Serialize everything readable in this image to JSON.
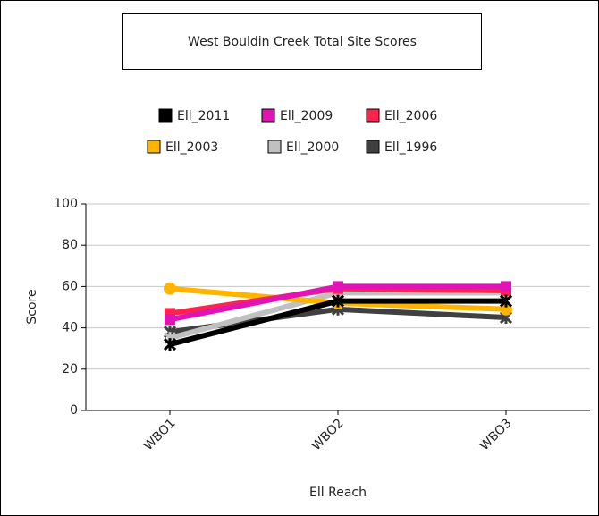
{
  "chart_data": {
    "type": "line",
    "title": "West Bouldin Creek Total Site Scores",
    "x_label": "Ell Reach",
    "y_label": "Score",
    "categories": [
      "WBO1",
      "WBO2",
      "WBO3"
    ],
    "series": [
      {
        "name": "Ell_2011",
        "color": "#000000",
        "values": [
          32,
          53,
          53
        ]
      },
      {
        "name": "Ell_2009",
        "color": "#e014b4",
        "values": [
          44,
          60,
          60
        ]
      },
      {
        "name": "Ell_2006",
        "color": "#ff2450",
        "values": [
          47,
          59,
          58
        ]
      },
      {
        "name": "Ell_2003",
        "color": "#ffb400",
        "values": [
          59,
          52,
          49
        ]
      },
      {
        "name": "Ell_2000",
        "color": "#c0c0c0",
        "values": [
          35,
          57,
          57
        ]
      },
      {
        "name": "Ell_1996",
        "color": "#404040",
        "values": [
          38,
          49,
          45
        ]
      }
    ],
    "ylim": [
      0,
      100
    ],
    "yticks": [
      0,
      20,
      40,
      60,
      80,
      100
    ],
    "grid": true
  }
}
